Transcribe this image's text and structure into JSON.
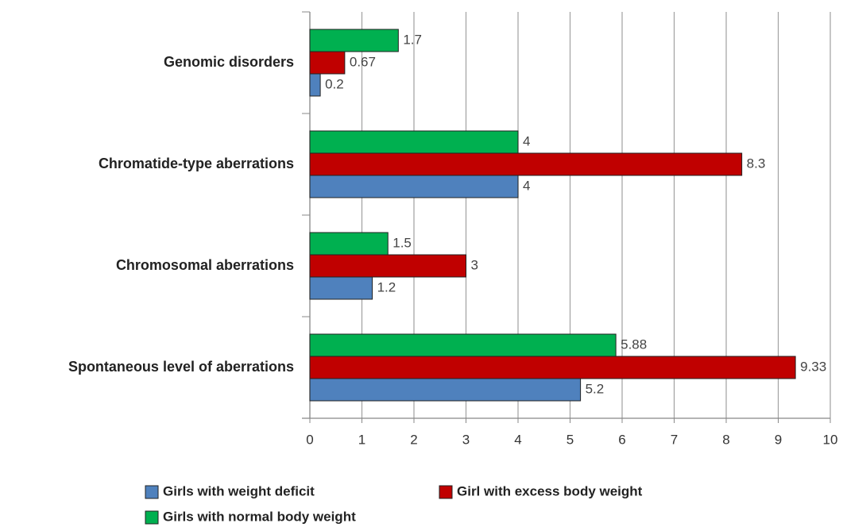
{
  "chart_data": {
    "type": "barh",
    "categories": [
      "Genomic disorders",
      "Chromatide-type aberrations",
      "Chromosomal aberrations",
      "Spontaneous level of aberrations"
    ],
    "series": [
      {
        "name": "Girls with weight deficit",
        "color": "#4f81bd",
        "values": [
          0.2,
          4,
          1.2,
          5.2
        ]
      },
      {
        "name": "Girl with excess body weight",
        "color": "#c00000",
        "values": [
          0.67,
          8.3,
          3,
          9.33
        ]
      },
      {
        "name": "Girls with normal body weight",
        "color": "#00b050",
        "values": [
          1.7,
          4,
          1.5,
          5.88
        ]
      }
    ],
    "xlim": [
      0,
      10
    ],
    "xticks": [
      0,
      1,
      2,
      3,
      4,
      5,
      6,
      7,
      8,
      9,
      10
    ],
    "grid": true
  }
}
